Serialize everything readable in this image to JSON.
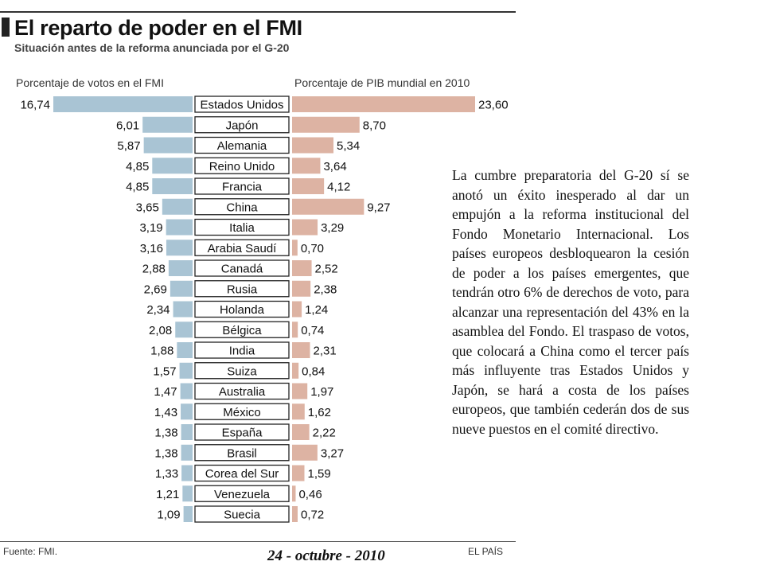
{
  "header": {
    "title": "El reparto de poder en el FMI",
    "subtitle": "Situación antes de la reforma anunciada por el G-20"
  },
  "footer": {
    "source": "Fuente: FMI.",
    "date": "24 - octubre - 2010",
    "brand": "EL PAÍS"
  },
  "article": {
    "text": "La cumbre preparatoria del G-20 sí se anotó un éxito inesperado al dar un empujón a la reforma institucional del Fondo Monetario Internacional. Los países europeos desbloquearon la cesión de poder a los países emergentes, que tendrán otro 6% de derechos de voto, para alcanzar una representación del 43% en la asamblea del Fondo. El traspaso de votos, que colocará a China como el tercer país más influyente tras Estados Unidos y Japón, se hará a costa de los países europeos, que también cederán dos de sus nueve puestos en el comité directivo."
  },
  "colors": {
    "votes_bar": "#a9c4d4",
    "pib_bar": "#ddb3a3",
    "country_box_border": "#222222"
  },
  "chart_data": {
    "type": "bar",
    "orientation": "horizontal-butterfly",
    "categories": [
      "Estados Unidos",
      "Japón",
      "Alemania",
      "Reino Unido",
      "Francia",
      "China",
      "Italia",
      "Arabia Saudí",
      "Canadá",
      "Rusia",
      "Holanda",
      "Bélgica",
      "India",
      "Suiza",
      "Australia",
      "México",
      "España",
      "Brasil",
      "Corea del Sur",
      "Venezuela",
      "Suecia"
    ],
    "series": [
      {
        "name": "Porcentaje de votos en el FMI",
        "values": [
          16.74,
          6.01,
          5.87,
          4.85,
          4.85,
          3.65,
          3.19,
          3.16,
          2.88,
          2.69,
          2.34,
          2.08,
          1.88,
          1.57,
          1.47,
          1.43,
          1.38,
          1.38,
          1.33,
          1.21,
          1.09
        ],
        "labels": [
          "16,74",
          "6,01",
          "5,87",
          "4,85",
          "4,85",
          "3,65",
          "3,19",
          "3,16",
          "2,88",
          "2,69",
          "2,34",
          "2,08",
          "1,88",
          "1,57",
          "1,47",
          "1,43",
          "1,38",
          "1,38",
          "1,33",
          "1,21",
          "1,09"
        ]
      },
      {
        "name": "Porcentaje de PIB mundial en 2010",
        "values": [
          23.6,
          8.7,
          5.34,
          3.64,
          4.12,
          9.27,
          3.29,
          0.7,
          2.52,
          2.38,
          1.24,
          0.74,
          2.31,
          0.84,
          1.97,
          1.62,
          2.22,
          3.27,
          1.59,
          0.46,
          0.72
        ],
        "labels": [
          "23,60",
          "8,70",
          "5,34",
          "3,64",
          "4,12",
          "9,27",
          "3,29",
          "0,70",
          "2,52",
          "2,38",
          "1,24",
          "0,74",
          "2,31",
          "0,84",
          "1,97",
          "1,62",
          "2,22",
          "3,27",
          "1,59",
          "0,46",
          "0,72"
        ]
      }
    ],
    "grid": false
  }
}
